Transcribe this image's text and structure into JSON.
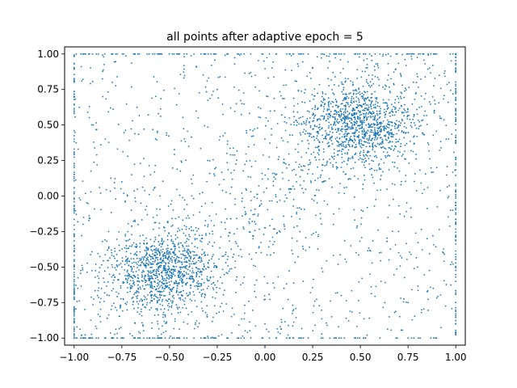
{
  "chart_data": {
    "type": "scatter",
    "title": "all points after adaptive epoch = 5",
    "xlabel": "",
    "ylabel": "",
    "xlim": [
      -1.05,
      1.05
    ],
    "ylim": [
      -1.05,
      1.05
    ],
    "x_ticks": [
      -1.0,
      -0.75,
      -0.5,
      -0.25,
      0.0,
      0.25,
      0.5,
      0.75,
      1.0
    ],
    "y_ticks": [
      -1.0,
      -0.75,
      -0.5,
      -0.25,
      0.0,
      0.25,
      0.5,
      0.75,
      1.0
    ],
    "x_tick_labels": [
      "−1.00",
      "−0.75",
      "−0.50",
      "−0.25",
      "0.00",
      "0.25",
      "0.50",
      "0.75",
      "1.00"
    ],
    "y_tick_labels": [
      "−1.00",
      "−0.75",
      "−0.50",
      "−0.25",
      "0.00",
      "0.25",
      "0.50",
      "0.75",
      "1.00"
    ],
    "grid": false,
    "legend": "none",
    "series_color": "#1f77b4",
    "series": [
      {
        "x": [
          -0.52,
          -0.48,
          -0.61,
          -0.55,
          -0.44,
          -0.58,
          -0.5,
          -0.63,
          -0.47,
          -0.53,
          -0.41,
          -0.66,
          -0.57,
          -0.49,
          -0.6,
          -0.46,
          -0.54,
          -0.51,
          -0.69,
          -0.38,
          -0.62,
          -0.45,
          -0.56,
          -0.5,
          -0.72,
          -0.35,
          -0.59,
          -0.43,
          -0.64,
          -0.52,
          -0.48,
          -0.55,
          -0.4,
          -0.67,
          -0.53,
          -0.46,
          -0.58,
          -0.51,
          -0.75,
          -0.33,
          -0.61,
          -0.44,
          -0.57,
          -0.49,
          -0.65,
          -0.42,
          -0.54,
          -0.5,
          -0.78,
          -0.3,
          -0.47,
          -0.6,
          -0.52,
          -0.56,
          -0.39,
          -0.7,
          -0.45,
          -0.63,
          -0.51,
          -0.48,
          0.48,
          0.52,
          0.41,
          0.55,
          0.6,
          0.44,
          0.5,
          0.37,
          0.58,
          0.47,
          0.63,
          0.42,
          0.53,
          0.49,
          0.35,
          0.66,
          0.45,
          0.56,
          0.5,
          0.28,
          0.7,
          0.43,
          0.57,
          0.46,
          0.62,
          0.39,
          0.54,
          0.51,
          0.32,
          0.74,
          0.48,
          0.59,
          0.44,
          0.52,
          0.36,
          0.67,
          0.47,
          0.55,
          0.5,
          0.25,
          0.78,
          0.41,
          0.6,
          0.53,
          0.46,
          0.64,
          0.38,
          0.56,
          0.49,
          0.3,
          0.72,
          0.45,
          0.58,
          0.51,
          0.42,
          0.68,
          0.48,
          0.54,
          0.5,
          0.34,
          -0.8,
          -0.2,
          0.1,
          0.3,
          -0.9,
          0.85,
          -0.7,
          0.05,
          0.2,
          -0.3,
          0.9,
          -0.85,
          0.15,
          0.6,
          -0.1,
          0.4,
          -0.6,
          0.8,
          -0.25,
          0.0,
          0.7,
          -0.4,
          0.25,
          -0.95,
          0.95,
          0.35,
          -0.15,
          0.65,
          -0.75,
          0.1,
          -0.05,
          0.45,
          -0.55,
          0.75,
          -0.35,
          0.2,
          0.55,
          -0.65,
          0.3,
          -0.45,
          0.82,
          -0.18,
          0.12,
          0.88,
          -0.88,
          0.38,
          -0.28,
          0.68,
          0.08,
          -0.72
        ],
        "y": [
          -0.51,
          -0.55,
          -0.48,
          -0.6,
          -0.5,
          -0.42,
          -0.53,
          -0.57,
          -0.45,
          -0.62,
          -0.49,
          -0.52,
          -0.38,
          -0.58,
          -0.47,
          -0.65,
          -0.54,
          -0.44,
          -0.56,
          -0.51,
          -0.4,
          -0.61,
          -0.5,
          -0.68,
          -0.46,
          -0.53,
          -0.35,
          -0.57,
          -0.6,
          -0.43,
          -0.7,
          -0.49,
          -0.55,
          -0.48,
          -0.32,
          -0.63,
          -0.52,
          -0.74,
          -0.5,
          -0.46,
          -0.58,
          -0.41,
          -0.66,
          -0.54,
          -0.45,
          -0.56,
          -0.3,
          -0.78,
          -0.52,
          -0.5,
          -0.37,
          -0.61,
          -0.47,
          -0.59,
          -0.44,
          -0.53,
          -0.72,
          -0.49,
          -0.28,
          -0.55,
          0.51,
          0.46,
          0.55,
          0.49,
          0.58,
          0.44,
          0.53,
          0.5,
          0.62,
          0.42,
          0.48,
          0.56,
          0.38,
          0.6,
          0.47,
          0.52,
          0.66,
          0.45,
          0.35,
          0.54,
          0.5,
          0.7,
          0.43,
          0.57,
          0.49,
          0.32,
          0.61,
          0.46,
          0.53,
          0.48,
          0.74,
          0.41,
          0.55,
          0.28,
          0.5,
          0.59,
          0.44,
          0.67,
          0.52,
          0.47,
          0.56,
          0.36,
          0.63,
          0.5,
          0.78,
          0.45,
          0.54,
          0.25,
          0.6,
          0.48,
          0.53,
          0.42,
          0.69,
          0.51,
          0.3,
          0.57,
          0.46,
          0.64,
          0.5,
          0.4,
          0.8,
          0.3,
          -0.2,
          0.1,
          0.5,
          -0.3,
          -0.1,
          0.6,
          -0.6,
          0.25,
          0.2,
          0.7,
          -0.8,
          -0.4,
          0.05,
          -0.7,
          0.15,
          -0.5,
          0.75,
          -0.9,
          -0.25,
          0.35,
          0.9,
          -0.15,
          0.4,
          -0.85,
          0.65,
          -0.45,
          0.1,
          -0.65,
          0.85,
          -0.35,
          0.0,
          -0.75,
          0.55,
          0.45,
          -0.55,
          -0.05,
          0.18,
          0.72,
          -0.82,
          0.62,
          0.38,
          -0.28,
          0.22,
          -0.68,
          0.92,
          0.08,
          -0.92,
          0.28
        ]
      }
    ],
    "boundary": {
      "count_per_side": 110,
      "value": 1.0
    },
    "extra_points": 1400,
    "clusters": [
      {
        "cx": -0.53,
        "cy": -0.53,
        "sx": 0.14,
        "sy": 0.13,
        "n": 950
      },
      {
        "cx": 0.49,
        "cy": 0.5,
        "sx": 0.15,
        "sy": 0.14,
        "n": 1050
      }
    ]
  }
}
